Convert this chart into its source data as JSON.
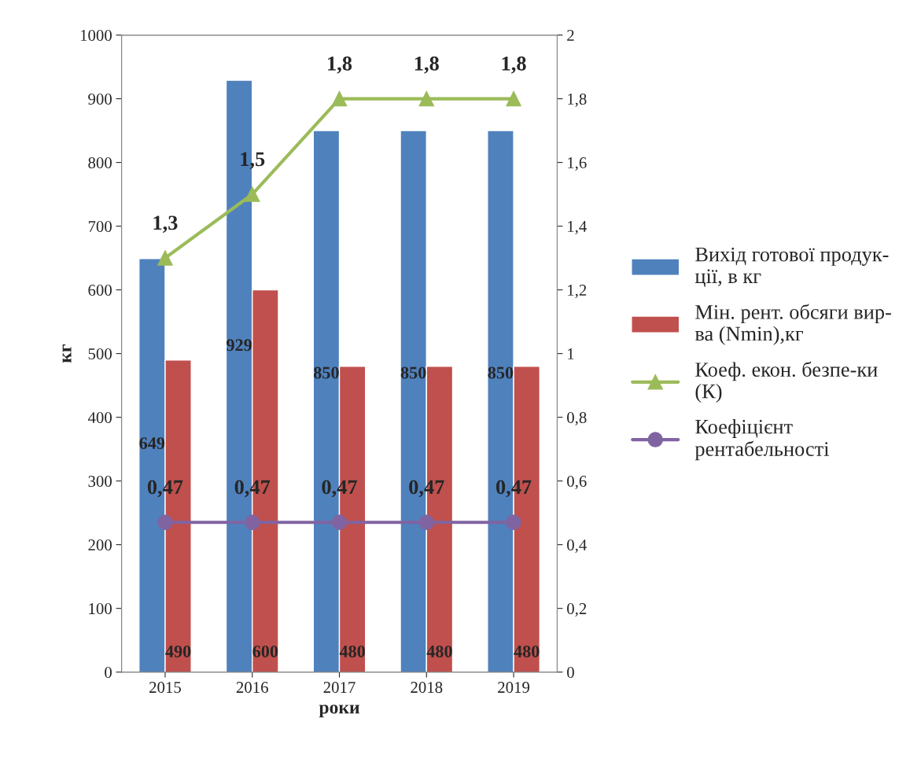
{
  "chart_data": {
    "type": "bar",
    "xlabel": "роки",
    "ylabel": "кг",
    "categories": [
      "2015",
      "2016",
      "2017",
      "2018",
      "2019"
    ],
    "series": [
      {
        "name": "Вихід готової продук-\nції, в кг",
        "color": "#4f81bd",
        "values": [
          649,
          929,
          850,
          850,
          850
        ],
        "value_labels": [
          "649",
          "929",
          "850",
          "850",
          "850"
        ]
      },
      {
        "name": "Мін. рент. обсяги вир-\nва (Nmin),кг",
        "color": "#c0504d",
        "values": [
          490,
          600,
          480,
          480,
          480
        ],
        "value_labels": [
          "490",
          "600",
          "480",
          "480",
          "480"
        ]
      },
      {
        "name": "Коеф. екон. безпе-ки\n(К)",
        "type": "line",
        "axis": "y2",
        "marker": "triangle",
        "color": "#9bbb59",
        "values": [
          1.3,
          1.5,
          1.8,
          1.8,
          1.8
        ],
        "value_labels": [
          "1,3",
          "1,5",
          "1,8",
          "1,8",
          "1,8"
        ]
      },
      {
        "name": "Коефіцієнт\nрентабельності",
        "type": "line",
        "axis": "y2",
        "marker": "circle",
        "color": "#8064a2",
        "values": [
          0.47,
          0.47,
          0.47,
          0.47,
          0.47
        ],
        "value_labels": [
          "0,47",
          "0,47",
          "0,47",
          "0,47",
          "0,47"
        ]
      }
    ],
    "ylim": [
      0,
      1000
    ],
    "yticks": [
      0,
      100,
      200,
      300,
      400,
      500,
      600,
      700,
      800,
      900,
      1000
    ],
    "y2lim": [
      0,
      2
    ],
    "y2ticks": [
      0,
      {
        "value": 0.2,
        "label": "0,2"
      },
      {
        "value": 0.4,
        "label": "0,4"
      },
      {
        "value": 0.6,
        "label": "0,6"
      },
      {
        "value": 0.8,
        "label": "0,8"
      },
      1,
      {
        "value": 1.2,
        "label": "1,2"
      },
      {
        "value": 1.4,
        "label": "1,4"
      },
      {
        "value": 1.6,
        "label": "1,6"
      },
      {
        "value": 1.8,
        "label": "1,8"
      },
      2
    ],
    "grid": false,
    "legend": "right"
  }
}
